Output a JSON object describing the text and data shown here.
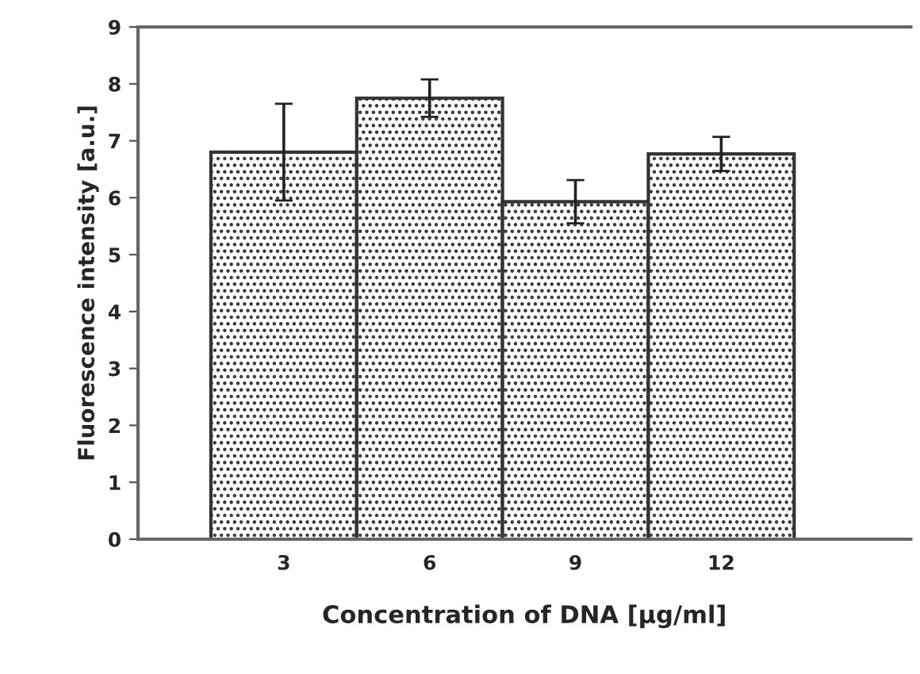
{
  "chart_data": {
    "type": "bar",
    "xlabel": "Concentration of DNA [µg/ml]",
    "ylabel": "Fluorescence intensity [a.u.]",
    "categories": [
      "3",
      "6",
      "9",
      "12"
    ],
    "values": [
      6.8,
      7.75,
      5.93,
      6.77
    ],
    "errors": [
      0.85,
      0.33,
      0.38,
      0.3
    ],
    "color": "#333333",
    "ylim": [
      0,
      9
    ],
    "yticks": [
      0,
      1,
      2,
      3,
      4,
      5,
      6,
      7,
      8,
      9
    ],
    "grid": false,
    "legend": false
  }
}
